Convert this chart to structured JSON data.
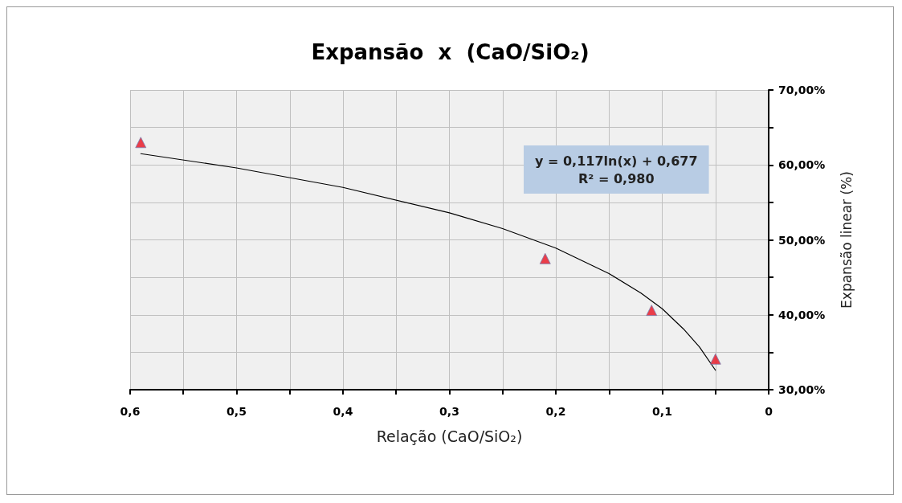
{
  "chart_data": {
    "type": "scatter",
    "title": "Expansão  x  (CaO/SiO₂)",
    "xlabel": "Relação (CaO/SiO₂)",
    "ylabel": "Expansão linear (%)",
    "annotations": [
      "y = 0,117ln(x) + 0,677",
      "R² = 0,980"
    ],
    "series": [
      {
        "color": "#e8101f",
        "marker": "triangle",
        "x": [
          0.59,
          0.21,
          0.11,
          0.05
        ],
        "values": [
          63.0,
          47.5,
          40.6,
          34.1
        ]
      },
      {
        "type": "line",
        "color": "#000000",
        "marker": "none",
        "line_style": "solid",
        "x": [
          0.59,
          0.5,
          0.4,
          0.3,
          0.25,
          0.2,
          0.15,
          0.12,
          0.1,
          0.08,
          0.065,
          0.05
        ],
        "values": [
          61.5,
          59.6,
          57.0,
          53.6,
          51.5,
          48.9,
          45.5,
          42.9,
          40.8,
          38.1,
          35.7,
          32.6
        ]
      }
    ],
    "xlim": [
      0.6,
      0
    ],
    "xticks": [
      {
        "value": 0.6,
        "label": "0,6"
      },
      {
        "value": 0.55,
        "label": null
      },
      {
        "value": 0.5,
        "label": "0,5"
      },
      {
        "value": 0.45,
        "label": null
      },
      {
        "value": 0.4,
        "label": "0,4"
      },
      {
        "value": 0.35,
        "label": null
      },
      {
        "value": 0.3,
        "label": "0,3"
      },
      {
        "value": 0.25,
        "label": null
      },
      {
        "value": 0.2,
        "label": "0,2"
      },
      {
        "value": 0.15,
        "label": null
      },
      {
        "value": 0.1,
        "label": "0,1"
      },
      {
        "value": 0.05,
        "label": null
      },
      0
    ],
    "ylim": [
      30,
      70
    ],
    "yticks": [
      {
        "value": 30,
        "label": "30,00%"
      },
      {
        "value": 35,
        "label": null
      },
      {
        "value": 40,
        "label": "40,00%"
      },
      {
        "value": 45,
        "label": null
      },
      {
        "value": 50,
        "label": "50,00%"
      },
      {
        "value": 55,
        "label": null
      },
      {
        "value": 60,
        "label": "60,00%"
      },
      {
        "value": 65,
        "label": null
      },
      {
        "value": 70,
        "label": "70,00%"
      }
    ],
    "grid": true
  }
}
